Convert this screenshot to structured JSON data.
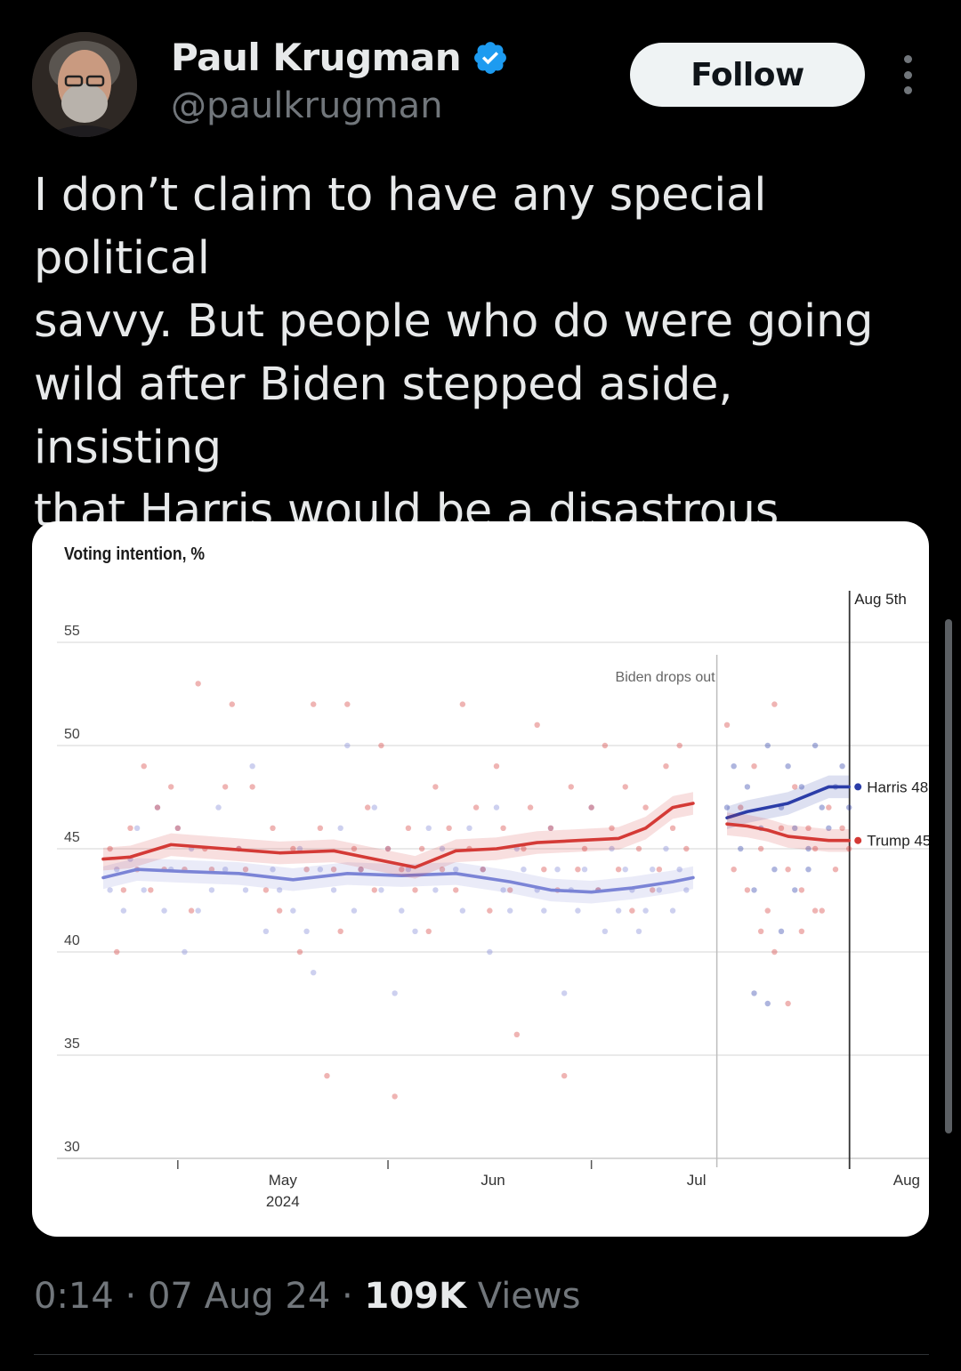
{
  "user": {
    "name": "Paul Krugman",
    "handle": "@paulkrugman",
    "verified_color": "#1d9bf0"
  },
  "actions": {
    "follow_label": "Follow",
    "more_icon": "more-icon"
  },
  "tweet": {
    "text": "I don’t claim to have any special political\nsavvy. But people who do were going\nwild after Biden stepped aside, insisting\nthat Harris would be a disastrous\ncandidate. How’s that going?"
  },
  "meta": {
    "time": "0:14",
    "date": "07 Aug 24",
    "views_count": "109K",
    "views_label": "Views",
    "sep": " · "
  },
  "chart_data": {
    "type": "scatter",
    "title": "Voting intention, %",
    "ylim": [
      30,
      55
    ],
    "yticks": [
      55,
      50,
      45,
      40,
      35,
      30
    ],
    "x_domain": [
      "2024-04-20",
      "2024-08-23"
    ],
    "xticks": [
      {
        "date": "2024-05-01",
        "label": "May",
        "sublabel": "2024"
      },
      {
        "date": "2024-06-01",
        "label": "Jun",
        "sublabel": ""
      },
      {
        "date": "2024-07-01",
        "label": "Jul",
        "sublabel": ""
      },
      {
        "date": "2024-08-01",
        "label": "Aug",
        "sublabel": ""
      }
    ],
    "annotations": [
      {
        "date": "2024-07-21",
        "label": "Biden drops out"
      },
      {
        "date": "2024-08-05",
        "label": "Aug 5th"
      }
    ],
    "series": [
      {
        "name": "Biden",
        "color": "#7b84d6",
        "trend": [
          [
            0,
            43.6
          ],
          [
            5,
            44.0
          ],
          [
            12,
            43.9
          ],
          [
            20,
            43.8
          ],
          [
            28,
            43.5
          ],
          [
            36,
            43.8
          ],
          [
            44,
            43.7
          ],
          [
            52,
            43.8
          ],
          [
            60,
            43.4
          ],
          [
            66,
            43.0
          ],
          [
            72,
            42.9
          ],
          [
            78,
            43.1
          ],
          [
            84,
            43.4
          ],
          [
            87,
            43.6
          ]
        ],
        "polls": [
          [
            1,
            43
          ],
          [
            2,
            44
          ],
          [
            3,
            42
          ],
          [
            4,
            44.5
          ],
          [
            5,
            46
          ],
          [
            6,
            43
          ],
          [
            8,
            47
          ],
          [
            9,
            42
          ],
          [
            10,
            44
          ],
          [
            11,
            46
          ],
          [
            12,
            40
          ],
          [
            13,
            45
          ],
          [
            14,
            42
          ],
          [
            16,
            43
          ],
          [
            17,
            47
          ],
          [
            18,
            44
          ],
          [
            20,
            45
          ],
          [
            21,
            43
          ],
          [
            22,
            49
          ],
          [
            24,
            41
          ],
          [
            25,
            44
          ],
          [
            26,
            43
          ],
          [
            28,
            42
          ],
          [
            29,
            45
          ],
          [
            30,
            41
          ],
          [
            31,
            39
          ],
          [
            32,
            44
          ],
          [
            34,
            43
          ],
          [
            35,
            46
          ],
          [
            36,
            50
          ],
          [
            37,
            42
          ],
          [
            38,
            44
          ],
          [
            40,
            47
          ],
          [
            41,
            43
          ],
          [
            42,
            45
          ],
          [
            43,
            38
          ],
          [
            44,
            42
          ],
          [
            45,
            44
          ],
          [
            46,
            41
          ],
          [
            48,
            46
          ],
          [
            49,
            43
          ],
          [
            50,
            45
          ],
          [
            52,
            44
          ],
          [
            53,
            42
          ],
          [
            54,
            46
          ],
          [
            56,
            44
          ],
          [
            57,
            40
          ],
          [
            58,
            47
          ],
          [
            59,
            43
          ],
          [
            60,
            42
          ],
          [
            61,
            45
          ],
          [
            62,
            44
          ],
          [
            64,
            43
          ],
          [
            65,
            42
          ],
          [
            66,
            46
          ],
          [
            67,
            44
          ],
          [
            68,
            38
          ],
          [
            69,
            43
          ],
          [
            70,
            42
          ],
          [
            71,
            44
          ],
          [
            72,
            47
          ],
          [
            73,
            43
          ],
          [
            74,
            41
          ],
          [
            75,
            45
          ],
          [
            76,
            42
          ],
          [
            77,
            44
          ],
          [
            78,
            43
          ],
          [
            79,
            41
          ],
          [
            80,
            42
          ],
          [
            81,
            44
          ],
          [
            82,
            43
          ],
          [
            83,
            45
          ],
          [
            84,
            42
          ],
          [
            85,
            44
          ],
          [
            86,
            43
          ]
        ]
      },
      {
        "name": "Trump",
        "color": "#d43a36",
        "trend": [
          [
            0,
            44.5
          ],
          [
            4,
            44.6
          ],
          [
            10,
            45.2
          ],
          [
            18,
            45.0
          ],
          [
            26,
            44.8
          ],
          [
            34,
            44.9
          ],
          [
            40,
            44.5
          ],
          [
            46,
            44.1
          ],
          [
            52,
            44.9
          ],
          [
            58,
            45.0
          ],
          [
            64,
            45.3
          ],
          [
            70,
            45.4
          ],
          [
            76,
            45.5
          ],
          [
            80,
            46.0
          ],
          [
            84,
            47.0
          ],
          [
            87,
            47.2
          ]
        ],
        "polls": [
          [
            1,
            45
          ],
          [
            2,
            40
          ],
          [
            3,
            43
          ],
          [
            4,
            46
          ],
          [
            5,
            44
          ],
          [
            6,
            49
          ],
          [
            7,
            43
          ],
          [
            8,
            47
          ],
          [
            9,
            44
          ],
          [
            10,
            48
          ],
          [
            11,
            46
          ],
          [
            12,
            44
          ],
          [
            13,
            42
          ],
          [
            14,
            53
          ],
          [
            15,
            45
          ],
          [
            16,
            44
          ],
          [
            18,
            48
          ],
          [
            19,
            52
          ],
          [
            20,
            45
          ],
          [
            21,
            44
          ],
          [
            22,
            48
          ],
          [
            24,
            43
          ],
          [
            25,
            46
          ],
          [
            26,
            42
          ],
          [
            28,
            45
          ],
          [
            29,
            40
          ],
          [
            30,
            44
          ],
          [
            31,
            52
          ],
          [
            32,
            46
          ],
          [
            33,
            34
          ],
          [
            34,
            44
          ],
          [
            35,
            41
          ],
          [
            36,
            52
          ],
          [
            37,
            45
          ],
          [
            38,
            44
          ],
          [
            39,
            47
          ],
          [
            40,
            43
          ],
          [
            41,
            50
          ],
          [
            42,
            45
          ],
          [
            43,
            33
          ],
          [
            44,
            44
          ],
          [
            45,
            46
          ],
          [
            46,
            43
          ],
          [
            47,
            45
          ],
          [
            48,
            41
          ],
          [
            49,
            48
          ],
          [
            50,
            44
          ],
          [
            51,
            46
          ],
          [
            52,
            43
          ],
          [
            53,
            52
          ],
          [
            54,
            45
          ],
          [
            55,
            47
          ],
          [
            56,
            44
          ],
          [
            57,
            42
          ],
          [
            58,
            49
          ],
          [
            59,
            46
          ],
          [
            60,
            43
          ],
          [
            61,
            36
          ],
          [
            62,
            45
          ],
          [
            63,
            47
          ],
          [
            64,
            51
          ],
          [
            65,
            44
          ],
          [
            66,
            46
          ],
          [
            67,
            43
          ],
          [
            68,
            34
          ],
          [
            69,
            48
          ],
          [
            70,
            44
          ],
          [
            71,
            45
          ],
          [
            72,
            47
          ],
          [
            73,
            43
          ],
          [
            74,
            50
          ],
          [
            75,
            46
          ],
          [
            76,
            44
          ],
          [
            77,
            48
          ],
          [
            78,
            42
          ],
          [
            79,
            45
          ],
          [
            80,
            47
          ],
          [
            81,
            43
          ],
          [
            82,
            44
          ],
          [
            83,
            49
          ],
          [
            84,
            46
          ],
          [
            85,
            50
          ],
          [
            86,
            45
          ]
        ]
      },
      {
        "name": "Harris",
        "color": "#2b3da8",
        "label": "Harris 48",
        "trend": [
          [
            92,
            46.5
          ],
          [
            95,
            46.8
          ],
          [
            98,
            47.0
          ],
          [
            101,
            47.2
          ],
          [
            104,
            47.6
          ],
          [
            107,
            48.0
          ],
          [
            110,
            48.0
          ]
        ],
        "polls": [
          [
            92,
            47
          ],
          [
            93,
            49
          ],
          [
            94,
            45
          ],
          [
            95,
            48
          ],
          [
            96,
            43
          ],
          [
            97,
            46
          ],
          [
            98,
            50
          ],
          [
            99,
            44
          ],
          [
            100,
            47
          ],
          [
            101,
            49
          ],
          [
            102,
            46
          ],
          [
            103,
            48
          ],
          [
            104,
            45
          ],
          [
            105,
            50
          ],
          [
            106,
            47
          ],
          [
            107,
            46
          ],
          [
            108,
            48
          ],
          [
            109,
            49
          ],
          [
            110,
            47
          ],
          [
            96,
            38
          ],
          [
            98,
            37.5
          ],
          [
            100,
            41
          ],
          [
            102,
            43
          ],
          [
            104,
            44
          ]
        ]
      },
      {
        "name": "Trump",
        "color": "#d43a36",
        "label": "Trump 45",
        "trend": [
          [
            92,
            46.2
          ],
          [
            95,
            46.1
          ],
          [
            98,
            45.9
          ],
          [
            101,
            45.6
          ],
          [
            104,
            45.5
          ],
          [
            107,
            45.4
          ],
          [
            110,
            45.4
          ]
        ],
        "polls": [
          [
            92,
            51
          ],
          [
            93,
            44
          ],
          [
            94,
            47
          ],
          [
            95,
            43
          ],
          [
            96,
            49
          ],
          [
            97,
            45
          ],
          [
            98,
            42
          ],
          [
            99,
            52
          ],
          [
            100,
            46
          ],
          [
            101,
            44
          ],
          [
            102,
            48
          ],
          [
            103,
            43
          ],
          [
            104,
            46
          ],
          [
            105,
            45
          ],
          [
            106,
            42
          ],
          [
            107,
            47
          ],
          [
            108,
            44
          ],
          [
            109,
            46
          ],
          [
            110,
            45
          ],
          [
            97,
            41
          ],
          [
            99,
            40
          ],
          [
            101,
            37.5
          ],
          [
            103,
            41
          ],
          [
            105,
            42
          ]
        ]
      }
    ]
  }
}
